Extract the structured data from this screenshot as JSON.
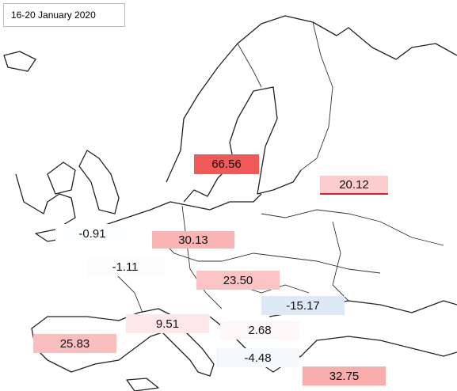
{
  "title": "16-20 January 2020",
  "labels": [
    {
      "value": 66.56
    },
    {
      "value": 20.12
    },
    {
      "value": -0.91
    },
    {
      "value": 30.13
    },
    {
      "value": -1.11
    },
    {
      "value": 23.5,
      "label": "23.50"
    },
    {
      "value": -15.17
    },
    {
      "value": 9.51
    },
    {
      "value": 2.68
    },
    {
      "value": 25.83
    },
    {
      "value": -4.48
    },
    {
      "value": 32.75
    }
  ]
}
